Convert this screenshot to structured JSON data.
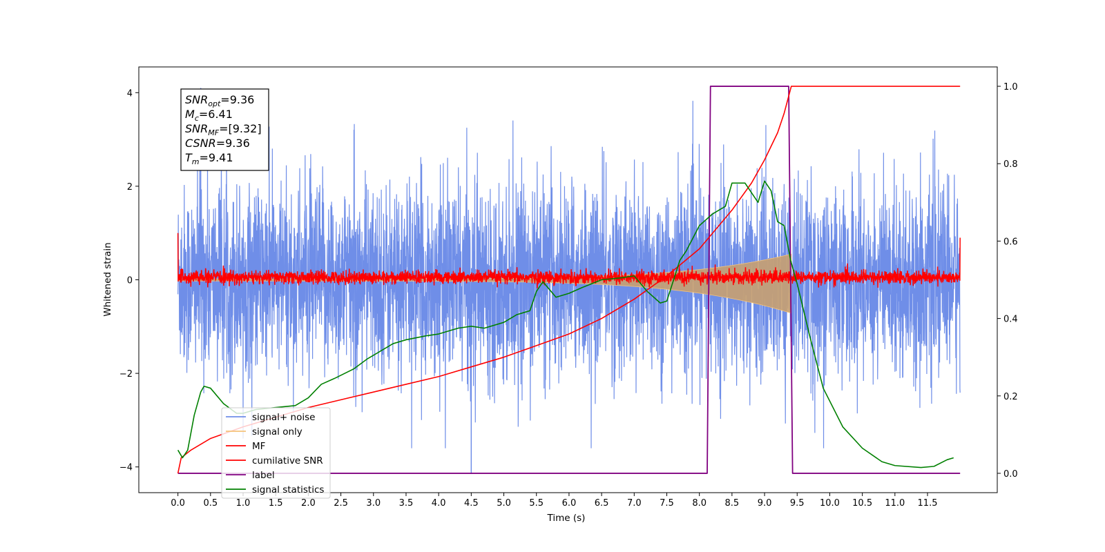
{
  "chart_data": {
    "type": "line",
    "xlabel": "Time (s)",
    "ylabel": "Whitened strain",
    "xlim": [
      -0.6,
      12.57
    ],
    "ylim": [
      -4.55,
      4.55
    ],
    "ylim_right": [
      -0.05,
      1.05
    ],
    "x_ticks": [
      0.0,
      0.5,
      1.0,
      1.5,
      2.0,
      2.5,
      3.0,
      3.5,
      4.0,
      4.5,
      5.0,
      5.5,
      6.0,
      6.5,
      7.0,
      7.5,
      8.0,
      8.5,
      9.0,
      9.5,
      10.0,
      10.5,
      11.0,
      11.5
    ],
    "x_tick_labels": [
      "0.0",
      "0.5",
      "1.0",
      "1.5",
      "2.0",
      "2.5",
      "3.0",
      "3.5",
      "4.0",
      "4.5",
      "5.0",
      "5.5",
      "6.0",
      "6.5",
      "7.0",
      "7.5",
      "8.0",
      "8.5",
      "9.0",
      "9.5",
      "10.0",
      "10.5",
      "11.0",
      "11.5"
    ],
    "y_ticks": [
      -4,
      -2,
      0,
      2,
      4
    ],
    "y_tick_labels": [
      "−4",
      "−2",
      "0",
      "2",
      "4"
    ],
    "y_right_ticks": [
      0.0,
      0.2,
      0.4,
      0.6,
      0.8,
      1.0
    ],
    "y_right_tick_labels": [
      "0.0",
      "0.2",
      "0.4",
      "0.6",
      "0.8",
      "1.0"
    ],
    "grid": false,
    "legend_placement": "lower-left",
    "series": [
      {
        "name": "signal+ noise",
        "color": "#6f8ee8",
        "axis": "left",
        "description_values": {
          "t_start": 0.0,
          "t_end": 12.0,
          "mean": 0.0,
          "approx_peak": 4.1,
          "approx_trough": -4.15
        }
      },
      {
        "name": "signal only",
        "color": "#f5c37a",
        "axis": "left",
        "chirp": {
          "t_start": 0.0,
          "t_merger": 9.41,
          "amp_start": 0.02,
          "amp_merger": 0.55
        }
      },
      {
        "name": "MF",
        "color": "#ff0000",
        "axis": "left",
        "description_values": {
          "t_start": 0.0,
          "t_end": 12.0,
          "approx_peak": 0.35,
          "approx_trough": -0.2,
          "edge_value": 1.0
        }
      },
      {
        "name": "cumilative SNR",
        "color": "#ff0000",
        "axis": "right",
        "x": [
          0.0,
          0.05,
          0.2,
          0.5,
          1.0,
          1.5,
          2.0,
          2.5,
          3.0,
          3.5,
          4.0,
          4.5,
          5.0,
          5.5,
          6.0,
          6.5,
          7.0,
          7.5,
          8.0,
          8.5,
          8.8,
          9.0,
          9.2,
          9.3,
          9.41,
          10.0,
          11.0,
          12.0
        ],
        "y": [
          0.0,
          0.04,
          0.06,
          0.09,
          0.12,
          0.145,
          0.17,
          0.19,
          0.21,
          0.23,
          0.25,
          0.275,
          0.3,
          0.33,
          0.36,
          0.4,
          0.45,
          0.51,
          0.58,
          0.68,
          0.75,
          0.81,
          0.88,
          0.93,
          1.0,
          1.0,
          1.0,
          1.0
        ]
      },
      {
        "name": "label",
        "color": "#800080",
        "axis": "right",
        "x": [
          0.0,
          8.12,
          8.17,
          9.37,
          9.43,
          12.0
        ],
        "y": [
          0.0,
          0.0,
          1.0,
          1.0,
          0.0,
          0.0
        ]
      },
      {
        "name": "signal statistics",
        "color": "#008000",
        "axis": "right",
        "x": [
          0.0,
          0.07,
          0.15,
          0.25,
          0.35,
          0.4,
          0.5,
          0.7,
          0.9,
          1.0,
          1.2,
          1.5,
          1.8,
          2.0,
          2.2,
          2.4,
          2.7,
          2.9,
          3.1,
          3.3,
          3.5,
          3.8,
          4.0,
          4.2,
          4.3,
          4.5,
          4.7,
          5.0,
          5.2,
          5.4,
          5.5,
          5.6,
          5.8,
          6.0,
          6.2,
          6.5,
          6.8,
          7.0,
          7.2,
          7.4,
          7.5,
          7.7,
          7.8,
          8.0,
          8.2,
          8.4,
          8.5,
          8.7,
          8.9,
          9.0,
          9.1,
          9.2,
          9.3,
          9.4,
          9.5,
          9.7,
          9.9,
          10.2,
          10.5,
          10.8,
          11.0,
          11.4,
          11.6,
          11.8,
          11.9
        ],
        "y": [
          0.06,
          0.04,
          0.06,
          0.15,
          0.21,
          0.225,
          0.22,
          0.18,
          0.155,
          0.155,
          0.165,
          0.17,
          0.175,
          0.195,
          0.23,
          0.245,
          0.27,
          0.295,
          0.315,
          0.335,
          0.345,
          0.355,
          0.36,
          0.37,
          0.375,
          0.38,
          0.375,
          0.39,
          0.41,
          0.42,
          0.47,
          0.495,
          0.455,
          0.465,
          0.48,
          0.5,
          0.505,
          0.51,
          0.47,
          0.44,
          0.445,
          0.55,
          0.575,
          0.64,
          0.67,
          0.69,
          0.75,
          0.75,
          0.7,
          0.755,
          0.73,
          0.65,
          0.64,
          0.55,
          0.49,
          0.35,
          0.22,
          0.12,
          0.065,
          0.03,
          0.02,
          0.015,
          0.018,
          0.035,
          0.04
        ]
      }
    ],
    "annotation": {
      "lines": [
        {
          "base": "SNR",
          "sub": "opt",
          "value": "=9.36"
        },
        {
          "base": "M",
          "sub": "c",
          "value": "=6.41"
        },
        {
          "base": "SNR",
          "sub": "MF",
          "value": "=[9.32]"
        },
        {
          "base": "CSNR",
          "sub": "",
          "value": "=9.36"
        },
        {
          "base": "T",
          "sub": "m",
          "value": "=9.41"
        }
      ]
    },
    "legend": [
      {
        "label": "signal+ noise",
        "color": "#6f8ee8"
      },
      {
        "label": "signal only",
        "color": "#f5c37a"
      },
      {
        "label": "MF",
        "color": "#ff0000"
      },
      {
        "label": "cumilative SNR",
        "color": "#ff0000"
      },
      {
        "label": "label",
        "color": "#800080"
      },
      {
        "label": "signal statistics",
        "color": "#008000"
      }
    ]
  }
}
